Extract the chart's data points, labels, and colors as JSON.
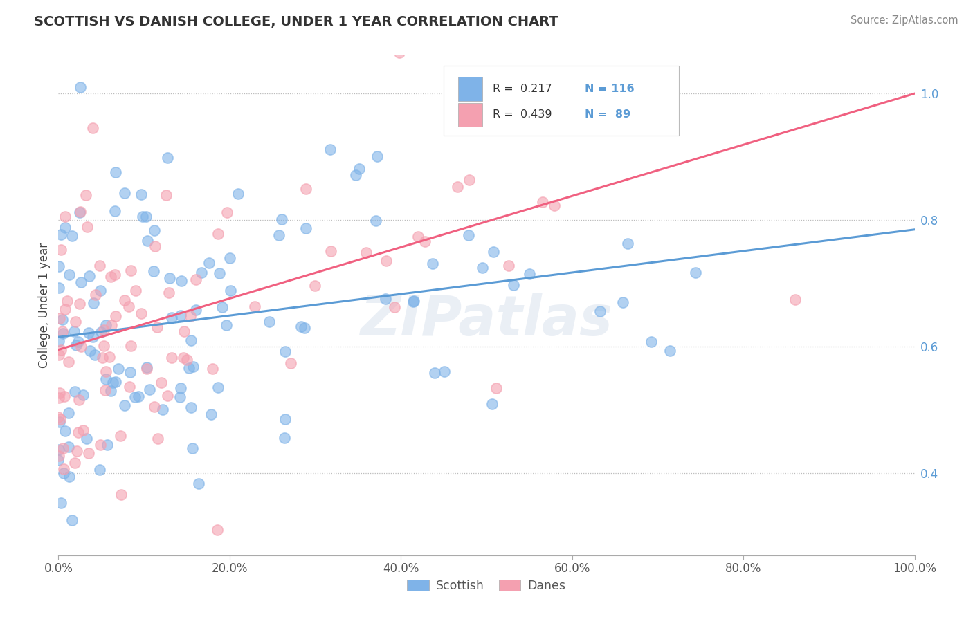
{
  "title": "SCOTTISH VS DANISH COLLEGE, UNDER 1 YEAR CORRELATION CHART",
  "ylabel": "College, Under 1 year",
  "source_text": "Source: ZipAtlas.com",
  "watermark": "ZIPatlas",
  "x_tick_labels": [
    "0.0%",
    "20.0%",
    "40.0%",
    "60.0%",
    "80.0%",
    "100.0%"
  ],
  "x_tick_vals": [
    0.0,
    0.2,
    0.4,
    0.6,
    0.8,
    1.0
  ],
  "y_tick_labels": [
    "40.0%",
    "60.0%",
    "80.0%",
    "100.0%"
  ],
  "y_tick_vals": [
    0.4,
    0.6,
    0.8,
    1.0
  ],
  "scottish_color": "#7FB3E8",
  "danish_color": "#F4A0B0",
  "scottish_line_color": "#5B9BD5",
  "danish_line_color": "#F06080",
  "scottish_R": 0.217,
  "scottish_N": 116,
  "danish_R": 0.439,
  "danish_N": 89,
  "legend_label_scottish": "Scottish",
  "legend_label_danish": "Danes",
  "scottish_line_x0": 0.0,
  "scottish_line_y0": 0.615,
  "scottish_line_x1": 1.0,
  "scottish_line_y1": 0.785,
  "danish_line_x0": 0.0,
  "danish_line_y0": 0.595,
  "danish_line_x1": 1.0,
  "danish_line_y1": 1.0,
  "ylim_min": 0.27,
  "ylim_max": 1.06
}
